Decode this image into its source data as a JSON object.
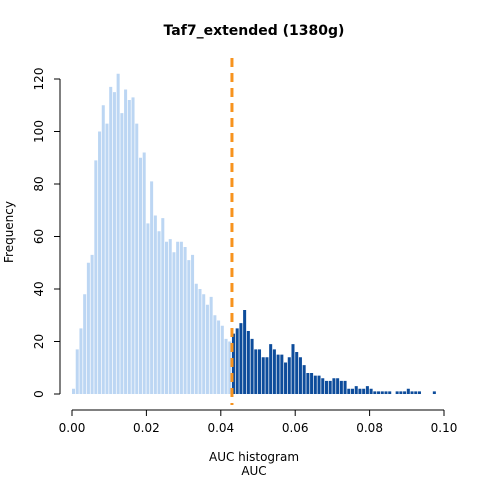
{
  "chart_data": {
    "type": "bar",
    "title": "Taf7_extended (1380g)",
    "xlabel": "AUC",
    "xlabel_top": "AUC histogram",
    "ylabel": "Frequency",
    "xlim": [
      0.0,
      0.1
    ],
    "ylim": [
      0,
      125
    ],
    "x_ticks": [
      0.0,
      0.02,
      0.04,
      0.06,
      0.08,
      0.1
    ],
    "x_tick_labels": [
      "0.00",
      "0.02",
      "0.04",
      "0.06",
      "0.08",
      "0.10"
    ],
    "y_ticks": [
      0,
      20,
      40,
      60,
      80,
      100,
      120
    ],
    "y_tick_labels": [
      "0",
      "20",
      "40",
      "60",
      "80",
      "100",
      "120"
    ],
    "bin_width": 0.001,
    "bin_start": 0.0,
    "threshold": 0.043,
    "grid": false,
    "legend": "none",
    "colors": {
      "below_threshold": "#BCD6F3",
      "above_threshold": "#0D4C9B",
      "threshold_line": "#F7931E"
    },
    "values": [
      2,
      17,
      25,
      38,
      50,
      53,
      89,
      100,
      110,
      103,
      117,
      115,
      122,
      107,
      116,
      112,
      113,
      103,
      90,
      92,
      65,
      81,
      68,
      62,
      67,
      58,
      59,
      54,
      58,
      58,
      56,
      51,
      53,
      42,
      40,
      38,
      34,
      37,
      30,
      28,
      26,
      21,
      20,
      23,
      25,
      27,
      32,
      24,
      21,
      17,
      17,
      14,
      14,
      19,
      17,
      15,
      15,
      12,
      14,
      19,
      16,
      14,
      11,
      8,
      8,
      7,
      7,
      6,
      5,
      5,
      6,
      6,
      5,
      5,
      2,
      2,
      3,
      2,
      2,
      3,
      2,
      1,
      1,
      1,
      1,
      1,
      0,
      1,
      1,
      1,
      2,
      1,
      1,
      1,
      0,
      0,
      0,
      1
    ]
  }
}
